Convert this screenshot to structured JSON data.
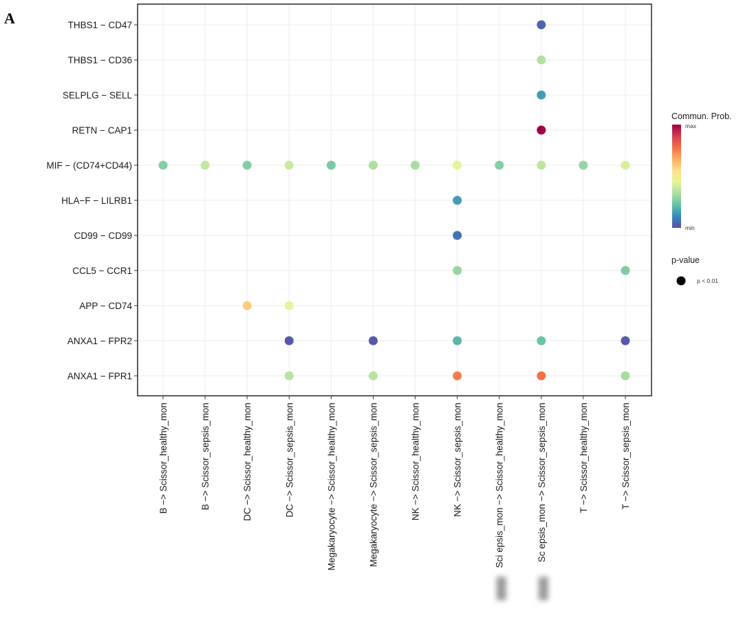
{
  "figure": {
    "panel_label": "A"
  },
  "chart_data": {
    "type": "scatter",
    "title": "",
    "xlabel": "",
    "ylabel": "",
    "grid": true,
    "x_categories": [
      "B -> Scissor_healthy_mon",
      "B -> Scissor_sepsis_mon",
      "DC -> Scissor_healthy_mon",
      "DC -> Scissor_sepsis_mon",
      "Megakaryocyte -> Scissor_healthy_mon",
      "Megakaryocyte -> Scissor_sepsis_mon",
      "NK -> Scissor_healthy_mon",
      "NK -> Scissor_sepsis_mon",
      "Scissor_sepsis_mon -> Scissor_healthy_mon",
      "Scissor_sepsis_mon -> Scissor_sepsis_mon",
      "T -> Scissor_healthy_mon",
      "T -> Scissor_sepsis_mon"
    ],
    "x_tick_display": [
      "B -> Scissor_healthy_mon",
      "B -> Scissor_sepsis_mon",
      "DC -> Scissor_healthy_mon",
      "DC -> Scissor_sepsis_mon",
      "Megakaryocyte -> Scissor_healthy_mon",
      "Megakaryocyte -> Scissor_sepsis_mon",
      "NK -> Scissor_healthy_mon",
      "NK -> Scissor_sepsis_mon",
      "Sci  epsis_mon -> Scissor_healthy_mon",
      "Sc  epsis_mon -> Scissor_sepsis_mon",
      "T -> Scissor_healthy_mon",
      "T -> Scissor_sepsis_mon"
    ],
    "y_categories": [
      "THBS1 - CD47",
      "THBS1 - CD36",
      "SELPLG - SELL",
      "RETN - CAP1",
      "MIF - (CD74+CD44)",
      "HLA-F - LILRB1",
      "CD99 - CD99",
      "CCL5 - CCR1",
      "APP - CD74",
      "ANXA1 - FPR2",
      "ANXA1 - FPR1"
    ],
    "value_scale": "relative communication probability, 0 = min, 1 = max",
    "points": [
      {
        "x": "Scissor_sepsis_mon -> Scissor_sepsis_mon",
        "y": "THBS1 - CD47",
        "value": 0.04
      },
      {
        "x": "Scissor_sepsis_mon -> Scissor_sepsis_mon",
        "y": "THBS1 - CD36",
        "value": 0.35
      },
      {
        "x": "Scissor_sepsis_mon -> Scissor_sepsis_mon",
        "y": "SELPLG - SELL",
        "value": 0.15
      },
      {
        "x": "Scissor_sepsis_mon -> Scissor_sepsis_mon",
        "y": "RETN - CAP1",
        "value": 1.0
      },
      {
        "x": "B -> Scissor_healthy_mon",
        "y": "MIF - (CD74+CD44)",
        "value": 0.27
      },
      {
        "x": "B -> Scissor_sepsis_mon",
        "y": "MIF - (CD74+CD44)",
        "value": 0.38
      },
      {
        "x": "DC -> Scissor_healthy_mon",
        "y": "MIF - (CD74+CD44)",
        "value": 0.27
      },
      {
        "x": "DC -> Scissor_sepsis_mon",
        "y": "MIF - (CD74+CD44)",
        "value": 0.39
      },
      {
        "x": "Megakaryocyte -> Scissor_healthy_mon",
        "y": "MIF - (CD74+CD44)",
        "value": 0.25
      },
      {
        "x": "Megakaryocyte -> Scissor_sepsis_mon",
        "y": "MIF - (CD74+CD44)",
        "value": 0.34
      },
      {
        "x": "NK -> Scissor_healthy_mon",
        "y": "MIF - (CD74+CD44)",
        "value": 0.33
      },
      {
        "x": "NK -> Scissor_sepsis_mon",
        "y": "MIF - (CD74+CD44)",
        "value": 0.44
      },
      {
        "x": "Scissor_sepsis_mon -> Scissor_healthy_mon",
        "y": "MIF - (CD74+CD44)",
        "value": 0.27
      },
      {
        "x": "Scissor_sepsis_mon -> Scissor_sepsis_mon",
        "y": "MIF - (CD74+CD44)",
        "value": 0.37
      },
      {
        "x": "T -> Scissor_healthy_mon",
        "y": "MIF - (CD74+CD44)",
        "value": 0.3
      },
      {
        "x": "T -> Scissor_sepsis_mon",
        "y": "MIF - (CD74+CD44)",
        "value": 0.42
      },
      {
        "x": "NK -> Scissor_sepsis_mon",
        "y": "HLA-F - LILRB1",
        "value": 0.15
      },
      {
        "x": "NK -> Scissor_sepsis_mon",
        "y": "CD99 - CD99",
        "value": 0.07
      },
      {
        "x": "NK -> Scissor_sepsis_mon",
        "y": "CCL5 - CCR1",
        "value": 0.3
      },
      {
        "x": "T -> Scissor_sepsis_mon",
        "y": "CCL5 - CCR1",
        "value": 0.26
      },
      {
        "x": "DC -> Scissor_healthy_mon",
        "y": "APP - CD74",
        "value": 0.6
      },
      {
        "x": "DC -> Scissor_sepsis_mon",
        "y": "APP - CD74",
        "value": 0.44
      },
      {
        "x": "DC -> Scissor_sepsis_mon",
        "y": "ANXA1 - FPR2",
        "value": 0.02
      },
      {
        "x": "Megakaryocyte -> Scissor_sepsis_mon",
        "y": "ANXA1 - FPR2",
        "value": 0.02
      },
      {
        "x": "NK -> Scissor_sepsis_mon",
        "y": "ANXA1 - FPR2",
        "value": 0.2
      },
      {
        "x": "Scissor_sepsis_mon -> Scissor_sepsis_mon",
        "y": "ANXA1 - FPR2",
        "value": 0.23
      },
      {
        "x": "T -> Scissor_sepsis_mon",
        "y": "ANXA1 - FPR2",
        "value": 0.02
      },
      {
        "x": "DC -> Scissor_sepsis_mon",
        "y": "ANXA1 - FPR1",
        "value": 0.36
      },
      {
        "x": "Megakaryocyte -> Scissor_sepsis_mon",
        "y": "ANXA1 - FPR1",
        "value": 0.36
      },
      {
        "x": "NK -> Scissor_sepsis_mon",
        "y": "ANXA1 - FPR1",
        "value": 0.75
      },
      {
        "x": "Scissor_sepsis_mon -> Scissor_sepsis_mon",
        "y": "ANXA1 - FPR1",
        "value": 0.77
      },
      {
        "x": "T -> Scissor_sepsis_mon",
        "y": "ANXA1 - FPR1",
        "value": 0.33
      }
    ],
    "legend": {
      "position": "right",
      "color_title": "Commun. Prob.",
      "color_max_label": "max",
      "color_min_label": "min",
      "palette": [
        "#5e4fa2",
        "#3288bd",
        "#66c2a5",
        "#abdda4",
        "#e6f598",
        "#fee08b",
        "#fdae61",
        "#f46d43",
        "#d53e4f",
        "#9e0142"
      ],
      "size_title": "p-value",
      "size_label": "p < 0.01",
      "size_marker_color": "#000000"
    }
  }
}
